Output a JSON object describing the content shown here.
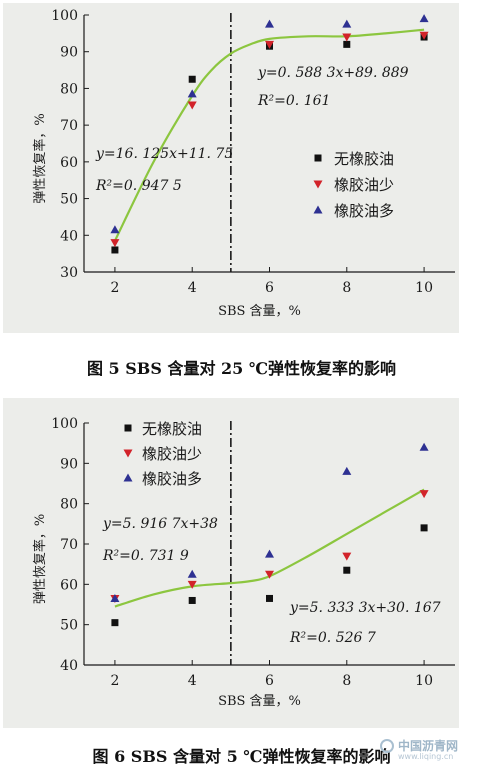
{
  "colors": {
    "background": "#ecedea",
    "axis": "#1a1a1a",
    "fit_line": "#8cc63f",
    "series": [
      "#111111",
      "#d2232a",
      "#2e3192"
    ]
  },
  "figures": [
    {
      "caption": "图 5   SBS 含量对 25 ℃弹性恢复率的影响",
      "eq_left": "y=16. 125x+11. 75",
      "r2_left": "R²=0. 947  5",
      "eq_right": "y=0. 588  3x+89. 889",
      "r2_right": "R²=0. 161"
    },
    {
      "caption": "图 6   SBS 含量对 5 ℃弹性恢复率的影响",
      "eq_left": "y=5. 916  7x+38",
      "r2_left": "R²=0. 731  9",
      "eq_right": "y=5. 333  3x+30. 167",
      "r2_right": "R²=0. 526  7"
    }
  ],
  "watermark": {
    "text": "中国沥青网",
    "sub": "www.liqing.cn"
  },
  "chart_data": [
    {
      "type": "scatter",
      "xlabel": "SBS 含量，%",
      "ylabel": "弹性恢复率，%",
      "xlim": [
        1.2,
        10.8
      ],
      "ylim": [
        30,
        100
      ],
      "xticks": [
        "2",
        "4",
        "6",
        "8",
        "10"
      ],
      "yticks": [
        "30",
        "40",
        "50",
        "60",
        "70",
        "80",
        "90",
        "100"
      ],
      "legend_position": "middle-right",
      "grid": false,
      "divider_x": 5,
      "x": [
        2,
        4,
        6,
        8,
        10
      ],
      "series": [
        {
          "name": "无橡胶油",
          "marker": "square",
          "values": [
            36,
            82.5,
            91.5,
            92,
            94
          ]
        },
        {
          "name": "橡胶油少",
          "marker": "triangle-down",
          "values": [
            38,
            75.5,
            92,
            94,
            94.5
          ]
        },
        {
          "name": "橡胶油多",
          "marker": "triangle-up",
          "values": [
            41.5,
            78.5,
            97.5,
            97.5,
            99
          ]
        }
      ],
      "fit_curve": [
        [
          2,
          38.5
        ],
        [
          3,
          60
        ],
        [
          4,
          78
        ],
        [
          4.5,
          85
        ],
        [
          5,
          89.5
        ],
        [
          5.5,
          92
        ],
        [
          6,
          93.5
        ],
        [
          7,
          94.2
        ],
        [
          8,
          94.2
        ],
        [
          9,
          95
        ],
        [
          10,
          96
        ]
      ]
    },
    {
      "type": "scatter",
      "xlabel": "SBS 含量，%",
      "ylabel": "弹性恢复率，%",
      "xlim": [
        1.2,
        10.8
      ],
      "ylim": [
        40,
        100
      ],
      "xticks": [
        "2",
        "4",
        "6",
        "8",
        "10"
      ],
      "yticks": [
        "40",
        "50",
        "60",
        "70",
        "80",
        "90",
        "100"
      ],
      "legend_position": "top-left",
      "grid": false,
      "divider_x": 5,
      "x": [
        2,
        4,
        6,
        8,
        10
      ],
      "series": [
        {
          "name": "无橡胶油",
          "marker": "square",
          "values": [
            50.5,
            56,
            56.5,
            63.5,
            74
          ]
        },
        {
          "name": "橡胶油少",
          "marker": "triangle-down",
          "values": [
            56.5,
            60,
            62.5,
            67,
            82.5
          ]
        },
        {
          "name": "橡胶油多",
          "marker": "triangle-up",
          "values": [
            56.5,
            62.5,
            67.5,
            88,
            94
          ]
        }
      ],
      "fit_curve": [
        [
          2,
          54.5
        ],
        [
          3,
          57.5
        ],
        [
          4,
          59.5
        ],
        [
          5,
          60.3
        ],
        [
          5.5,
          60.8
        ],
        [
          6,
          62
        ],
        [
          7,
          67
        ],
        [
          8,
          72.5
        ],
        [
          9,
          78
        ],
        [
          10,
          83.5
        ]
      ]
    }
  ]
}
